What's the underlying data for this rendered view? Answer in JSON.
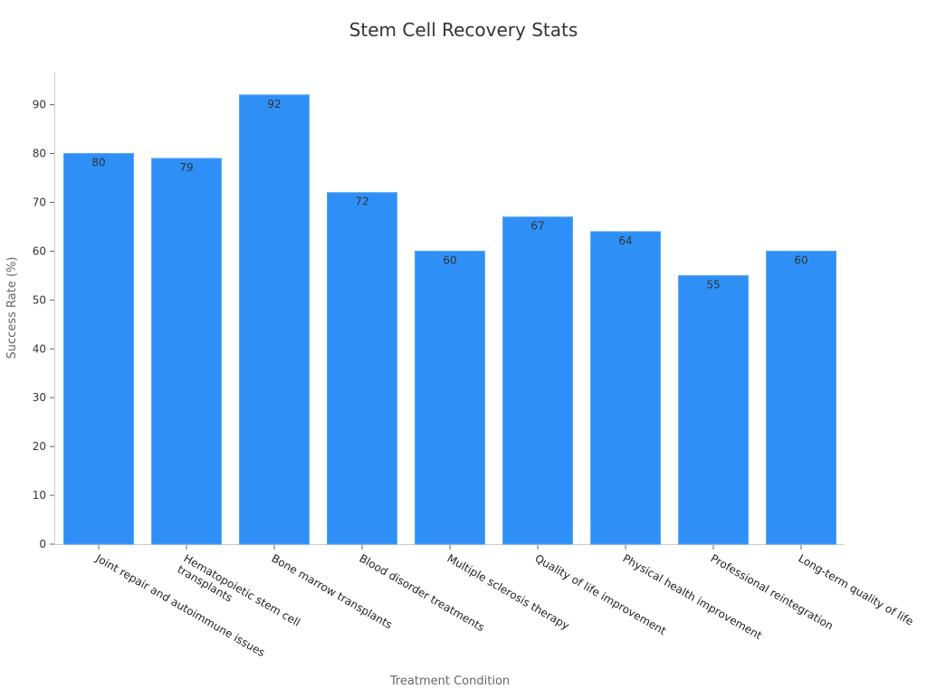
{
  "chart_data": {
    "type": "bar",
    "title": "Stem Cell Recovery Stats",
    "xlabel": "Treatment Condition",
    "ylabel": "Success Rate (%)",
    "ylim": [
      0,
      96.6
    ],
    "yticks": [
      0,
      10,
      20,
      30,
      40,
      50,
      60,
      70,
      80,
      90
    ],
    "grid": false,
    "bar_color": "#2E90F7",
    "categories": [
      "Joint repair and autoimmune issues",
      "Hematopoietic stem cell transplants",
      "Bone marrow transplants",
      "Blood disorder treatments",
      "Multiple sclerosis therapy",
      "Quality of life improvement",
      "Physical health improvement",
      "Professional reintegration",
      "Long-term quality of life"
    ],
    "values": [
      80,
      79,
      92,
      72,
      60,
      67,
      64,
      55,
      60
    ]
  }
}
